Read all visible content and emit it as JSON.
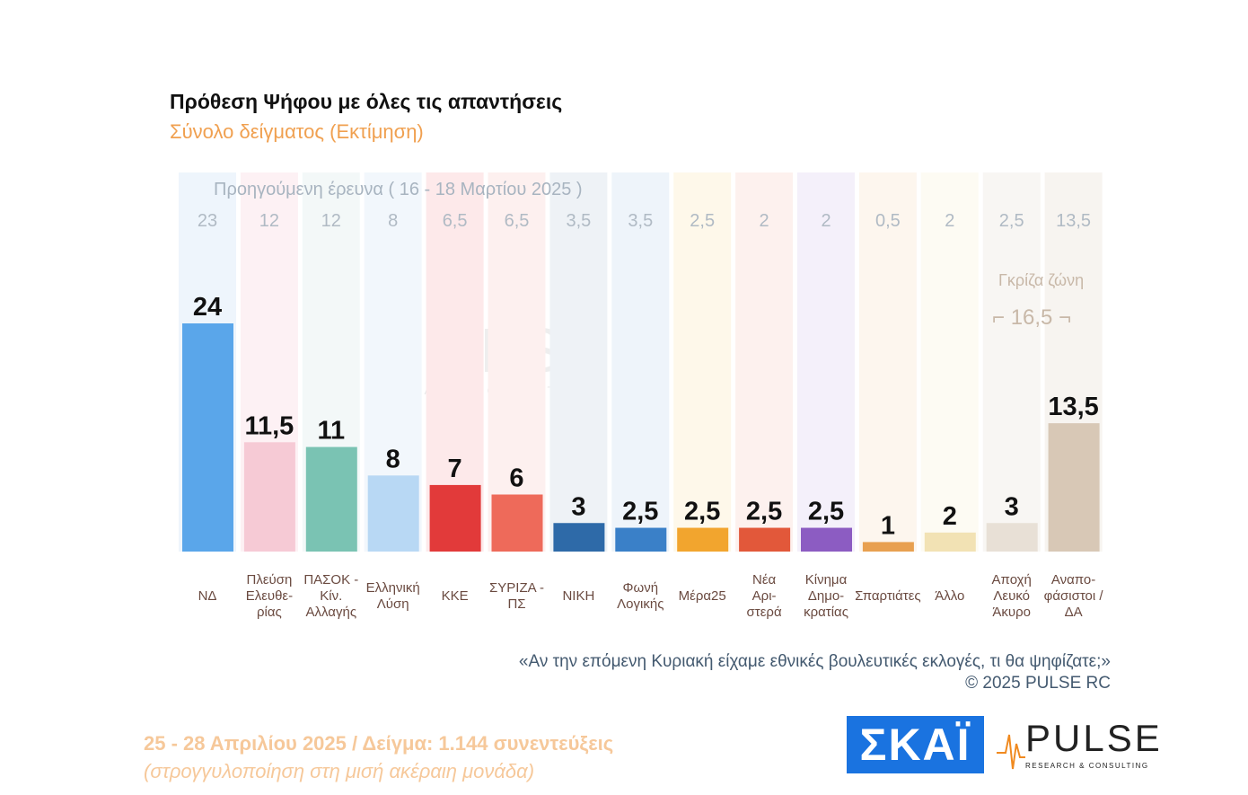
{
  "title": "Πρόθεση Ψήφου με όλες τις απαντήσεις",
  "subtitle": "Σύνολο δείγματος   (Εκτίμηση)",
  "chart_data": {
    "type": "bar",
    "title": "Πρόθεση Ψήφου με όλες τις απαντήσεις",
    "subtitle": "Σύνολο δείγματος   (Εκτίμηση)",
    "categories": [
      "ΝΔ",
      "Πλεύση Ελευθε- ρίας",
      "ΠΑΣΟΚ - Κίν. Αλλαγής",
      "Ελληνική Λύση",
      "ΚΚΕ",
      "ΣΥΡΙΖΑ - ΠΣ",
      "ΝΙΚΗ",
      "Φωνή Λογικής",
      "Μέρα25",
      "Νέα Αρι- στερά",
      "Κίνημα Δημο- κρατίας",
      "Σπαρτιάτες",
      "Άλλο",
      "Αποχή Λευκό Άκυρο",
      "Αναπο- φάσιστοι / ΔΑ"
    ],
    "series": [
      {
        "values": [
          24,
          11.5,
          11,
          8,
          7,
          6,
          3,
          2.5,
          2.5,
          2.5,
          2.5,
          1,
          2,
          3,
          13.5
        ]
      }
    ],
    "value_labels": [
      "24",
      "11,5",
      "11",
      "8",
      "7",
      "6",
      "3",
      "2,5",
      "2,5",
      "2,5",
      "2,5",
      "1",
      "2",
      "3",
      "13,5"
    ],
    "previous_title": "Προηγούμενη έρευνα ( 16 - 18 Μαρτίου 2025 )",
    "previous_values": [
      "23",
      "12",
      "12",
      "8",
      "6,5",
      "6,5",
      "3,5",
      "3,5",
      "2,5",
      "2",
      "2",
      "0,5",
      "2",
      "2,5",
      "13,5"
    ],
    "colors": [
      "#5aa6ea",
      "#f6cad5",
      "#7ac3b3",
      "#b8d8f4",
      "#e23a3a",
      "#ee6a5a",
      "#2e6aa8",
      "#3a80c8",
      "#f2a52e",
      "#e2583a",
      "#8c5cc2",
      "#e8a050",
      "#f2e2b4",
      "#e8e0d6",
      "#d8c8b6"
    ],
    "bg_colors": [
      "#eef5fc",
      "#fdf1f4",
      "#f3f8f8",
      "#f2f7fc",
      "#fde9ea",
      "#fdf0ef",
      "#eef2f6",
      "#eef4fa",
      "#fef8ea",
      "#fdf1ee",
      "#f4f0fa",
      "#fdf6ee",
      "#fdfbf3",
      "#f8f6f3",
      "#f7f4f0"
    ],
    "ylim": [
      0,
      25
    ],
    "grid": false
  },
  "gray_zone": {
    "label": "Γκρίζα ζώνη",
    "value": "16,5"
  },
  "question": "«Αν την επόμενη Κυριακή είχαμε εθνικές βουλευτικές εκλογές, τι θα ψηφίζατε;»",
  "copyright": "©  2025  PULSE RC",
  "footer": {
    "line1": "25 - 28 Απριλίου 2025  /  Δείγμα:  1.144 συνεντεύξεις",
    "line2": "(στρογγυλοποίηση στη μισή ακέραιη μονάδα)"
  },
  "logos": {
    "skai": "ΣΚΑΪ",
    "pulse": "PULSE",
    "pulse_sub": "RESEARCH & CONSULTING",
    "watermark": "PULSE"
  }
}
